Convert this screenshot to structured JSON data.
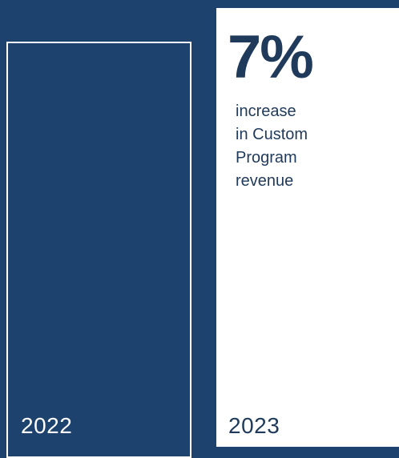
{
  "chart_data": {
    "type": "bar",
    "categories": [
      "2022",
      "2023"
    ],
    "values": [
      100,
      107
    ],
    "annotation": {
      "value_text": "7%",
      "caption_lines": [
        "increase",
        "in Custom",
        "Program",
        "revenue"
      ]
    }
  },
  "colors": {
    "background": "#1c426d",
    "bar_2023": "#ffffff",
    "bar_2022_outline": "#ffffff",
    "text_dark": "#1f3a5a",
    "text_light": "#ffffff"
  }
}
